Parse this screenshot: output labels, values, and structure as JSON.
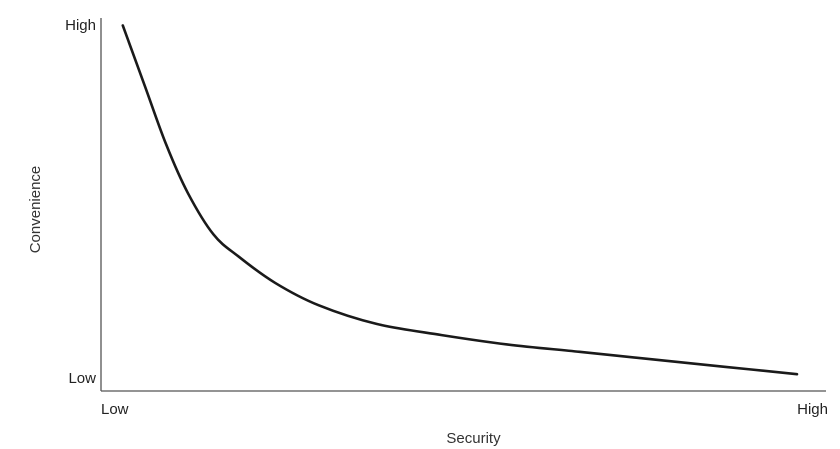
{
  "chart_data": {
    "type": "line",
    "title": "",
    "xlabel": "Security",
    "ylabel": "Convenience",
    "x_ticks": {
      "low": "Low",
      "high": "High"
    },
    "y_ticks": {
      "low": "Low",
      "high": "High"
    },
    "xlim": [
      0,
      1
    ],
    "ylim": [
      0,
      1
    ],
    "grid": false,
    "legend": "none",
    "line_color": "#1a1a1a",
    "axis_color": "#555555",
    "series": [
      {
        "x": [
          0.03,
          0.06,
          0.09,
          0.12,
          0.155,
          0.19,
          0.24,
          0.3,
          0.38,
          0.47,
          0.56,
          0.66,
          0.76,
          0.86,
          0.96
        ],
        "y": [
          0.98,
          0.82,
          0.66,
          0.53,
          0.42,
          0.36,
          0.29,
          0.23,
          0.18,
          0.15,
          0.125,
          0.105,
          0.085,
          0.065,
          0.045
        ]
      }
    ]
  }
}
